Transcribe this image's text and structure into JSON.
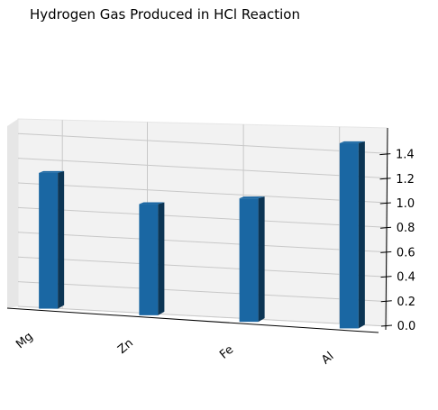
{
  "chart_data": {
    "type": "bar",
    "title": "Hydrogen Gas Produced in HCl Reaction",
    "categories": [
      "Mg",
      "Zn",
      "Fe",
      "Al"
    ],
    "values": [
      1.1,
      0.9,
      1.0,
      1.5
    ],
    "xlabel": "",
    "ylabel": "",
    "zlim": [
      0.0,
      1.5
    ],
    "z_ticks": [
      "0.0",
      "0.2",
      "0.4",
      "0.6",
      "0.8",
      "1.0",
      "1.2",
      "1.4"
    ],
    "grid": true,
    "colors": {
      "bar_front": "#1a67a3",
      "bar_side": "#0c3554",
      "bar_top": "#1a67a3"
    }
  }
}
